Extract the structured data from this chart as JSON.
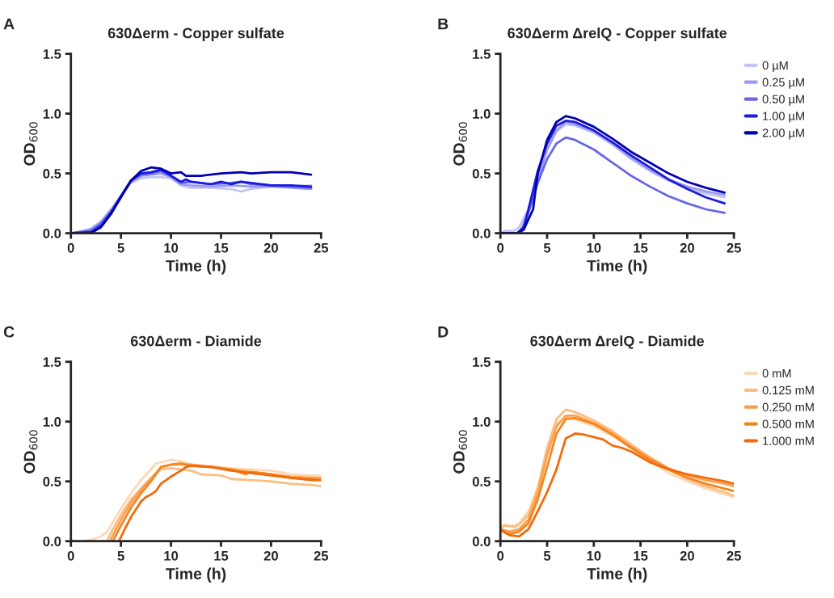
{
  "chart_data": [
    {
      "type": "line",
      "title": "630Δerm - Copper sulfate",
      "annotations": [
        "A"
      ],
      "xlabel": "Time (h)",
      "ylabel": "OD$_{600}$",
      "xlim": [
        0,
        25
      ],
      "xticks": [
        0,
        5,
        10,
        15,
        20,
        25
      ],
      "ylim": [
        0,
        1.5
      ],
      "yticks": [
        {
          "value": 0,
          "label": "0.0"
        },
        {
          "value": 0.5,
          "label": "0.5"
        },
        {
          "value": 1,
          "label": "1.0"
        },
        {
          "value": 1.5,
          "label": "1.5"
        }
      ],
      "grid": false,
      "legend": false,
      "series": [
        {
          "color": "#c3c3f5",
          "x": [
            0,
            1,
            2,
            3,
            4,
            5,
            6,
            7,
            8,
            9,
            10,
            11,
            12,
            14,
            16,
            17,
            18,
            20,
            22,
            24
          ],
          "values": [
            0,
            0.01,
            0.04,
            0.1,
            0.2,
            0.31,
            0.42,
            0.46,
            0.47,
            0.47,
            0.46,
            0.4,
            0.38,
            0.38,
            0.37,
            0.35,
            0.37,
            0.39,
            0.39,
            0.4
          ]
        },
        {
          "color": "#9a9af0",
          "x": [
            0,
            2,
            3,
            4,
            5,
            6,
            7,
            8,
            9,
            10,
            11,
            12,
            14,
            16,
            18,
            20,
            22,
            24
          ],
          "values": [
            0,
            0.03,
            0.09,
            0.19,
            0.31,
            0.43,
            0.48,
            0.49,
            0.5,
            0.47,
            0.41,
            0.4,
            0.39,
            0.4,
            0.39,
            0.39,
            0.38,
            0.37
          ]
        },
        {
          "color": "#6666e8",
          "x": [
            0,
            2,
            3,
            4,
            5,
            6,
            7,
            8,
            9,
            10,
            11,
            12,
            14,
            16,
            17,
            18,
            20,
            22,
            24
          ],
          "values": [
            0,
            0.02,
            0.08,
            0.18,
            0.31,
            0.44,
            0.49,
            0.5,
            0.52,
            0.48,
            0.42,
            0.43,
            0.41,
            0.42,
            0.43,
            0.41,
            0.4,
            0.39,
            0.38
          ]
        },
        {
          "color": "#1a1ae0",
          "x": [
            0,
            2,
            3,
            4,
            5,
            6,
            7,
            8,
            9,
            10,
            11,
            11.5,
            12,
            14,
            15,
            16,
            17,
            18,
            20,
            22,
            24
          ],
          "values": [
            0,
            0.01,
            0.06,
            0.17,
            0.31,
            0.44,
            0.5,
            0.51,
            0.53,
            0.48,
            0.43,
            0.45,
            0.43,
            0.41,
            0.43,
            0.41,
            0.43,
            0.42,
            0.4,
            0.4,
            0.39
          ]
        },
        {
          "color": "#0000b0",
          "x": [
            0,
            2,
            3,
            4,
            5,
            6,
            7,
            8,
            9,
            10,
            11,
            11.5,
            13,
            15,
            17,
            18,
            20,
            22,
            24
          ],
          "values": [
            0,
            0,
            0.05,
            0.16,
            0.3,
            0.44,
            0.52,
            0.55,
            0.54,
            0.5,
            0.51,
            0.48,
            0.48,
            0.5,
            0.51,
            0.5,
            0.51,
            0.51,
            0.49
          ]
        }
      ]
    },
    {
      "type": "line",
      "title": "630Δerm ΔrelQ - Copper sulfate",
      "annotations": [
        "B"
      ],
      "xlabel": "Time (h)",
      "ylabel": "OD$_{600}$",
      "xlim": [
        0,
        25
      ],
      "xticks": [
        0,
        5,
        10,
        15,
        20,
        25
      ],
      "ylim": [
        0,
        1.5
      ],
      "yticks": [
        {
          "value": 0,
          "label": "0.0"
        },
        {
          "value": 0.5,
          "label": "0.5"
        },
        {
          "value": 1,
          "label": "1.0"
        },
        {
          "value": 1.5,
          "label": "1.5"
        }
      ],
      "grid": false,
      "legend": "top right",
      "series": [
        {
          "name": "0 µM",
          "color": "#c3c3f5",
          "x": [
            0,
            0.5,
            1.5,
            2,
            3,
            4,
            5,
            6,
            7,
            8,
            10,
            12,
            14,
            16,
            18,
            20,
            22,
            24
          ],
          "values": [
            0,
            0.02,
            0.02,
            0.05,
            0.2,
            0.45,
            0.7,
            0.85,
            0.91,
            0.9,
            0.84,
            0.74,
            0.62,
            0.52,
            0.44,
            0.38,
            0.33,
            0.3
          ]
        },
        {
          "name": "0.25 µM",
          "color": "#9a9af0",
          "x": [
            0,
            1.8,
            2.2,
            3,
            4,
            5,
            6,
            7,
            8,
            10,
            12,
            14,
            16,
            18,
            20,
            22,
            24
          ],
          "values": [
            0,
            0,
            0.03,
            0.18,
            0.45,
            0.7,
            0.86,
            0.93,
            0.91,
            0.85,
            0.75,
            0.63,
            0.53,
            0.45,
            0.39,
            0.35,
            0.32
          ]
        },
        {
          "name": "0.50 µM",
          "color": "#6666e8",
          "x": [
            0,
            1.8,
            2.5,
            3,
            4,
            5,
            6,
            7,
            8,
            10,
            12,
            14,
            16,
            18,
            20,
            22,
            24
          ],
          "values": [
            0,
            0,
            0.05,
            0.17,
            0.42,
            0.62,
            0.75,
            0.8,
            0.78,
            0.7,
            0.59,
            0.48,
            0.39,
            0.31,
            0.25,
            0.2,
            0.17
          ]
        },
        {
          "name": "1.00 µM",
          "color": "#1a1ae0",
          "x": [
            0,
            1.8,
            2.5,
            3,
            4,
            5,
            6,
            7,
            8,
            10,
            12,
            14,
            16,
            18,
            20,
            22,
            24
          ],
          "values": [
            0,
            0,
            0.05,
            0.2,
            0.52,
            0.75,
            0.9,
            0.94,
            0.93,
            0.86,
            0.76,
            0.65,
            0.55,
            0.45,
            0.37,
            0.3,
            0.25
          ]
        },
        {
          "name": "2.00 µM",
          "color": "#0000b0",
          "x": [
            0,
            1.8,
            2.5,
            3.5,
            4,
            5,
            6,
            7,
            8,
            10,
            12,
            14,
            16,
            18,
            20,
            22,
            24
          ],
          "values": [
            0,
            0,
            0.03,
            0.2,
            0.5,
            0.78,
            0.93,
            0.98,
            0.96,
            0.89,
            0.79,
            0.68,
            0.59,
            0.5,
            0.43,
            0.38,
            0.34
          ]
        }
      ]
    },
    {
      "type": "line",
      "title": "630Δerm - Diamide",
      "annotations": [
        "C"
      ],
      "xlabel": "Time (h)",
      "ylabel": "OD$_{600}$",
      "xlim": [
        0,
        25
      ],
      "xticks": [
        0,
        5,
        10,
        15,
        20,
        25
      ],
      "ylim": [
        0,
        1.5
      ],
      "yticks": [
        {
          "value": 0,
          "label": "0.0"
        },
        {
          "value": 0.5,
          "label": "0.5"
        },
        {
          "value": 1,
          "label": "1.0"
        },
        {
          "value": 1.5,
          "label": "1.5"
        }
      ],
      "grid": false,
      "legend": false,
      "series": [
        {
          "color": "#fcd9b5",
          "x": [
            0,
            1,
            2,
            3,
            3.5,
            4,
            5,
            6,
            7,
            8,
            8.5,
            10,
            11,
            12,
            14,
            16,
            18,
            20,
            22,
            24,
            25
          ],
          "values": [
            0.01,
            0,
            0.01,
            0.04,
            0.07,
            0.13,
            0.27,
            0.4,
            0.51,
            0.6,
            0.65,
            0.68,
            0.67,
            0.64,
            0.63,
            0.61,
            0.6,
            0.59,
            0.56,
            0.55,
            0.55
          ]
        },
        {
          "color": "#fbbd80",
          "x": [
            3.6,
            4,
            5,
            6,
            7,
            8,
            9,
            10,
            11,
            12,
            13,
            15,
            16,
            18,
            20,
            22,
            24,
            25
          ],
          "values": [
            0,
            0.07,
            0.22,
            0.35,
            0.44,
            0.53,
            0.6,
            0.61,
            0.6,
            0.59,
            0.56,
            0.55,
            0.52,
            0.51,
            0.5,
            0.48,
            0.47,
            0.46
          ]
        },
        {
          "color": "#f9a050",
          "x": [
            3.9,
            5,
            6,
            7,
            8,
            9,
            10,
            12,
            14,
            16,
            18,
            20,
            22,
            24,
            25
          ],
          "values": [
            0,
            0.18,
            0.32,
            0.43,
            0.52,
            0.62,
            0.64,
            0.64,
            0.62,
            0.6,
            0.58,
            0.56,
            0.54,
            0.53,
            0.53
          ]
        },
        {
          "color": "#f5861f",
          "x": [
            4.2,
            5,
            6,
            7,
            8,
            9,
            10,
            11,
            12,
            14,
            16,
            17.5,
            18,
            20,
            22,
            24,
            25
          ],
          "values": [
            0,
            0.13,
            0.28,
            0.4,
            0.5,
            0.62,
            0.64,
            0.65,
            0.63,
            0.62,
            0.6,
            0.56,
            0.58,
            0.56,
            0.53,
            0.52,
            0.51
          ]
        },
        {
          "color": "#f26a0a",
          "x": [
            4.8,
            5.5,
            6,
            7,
            7.5,
            8,
            8.5,
            9,
            10,
            11,
            11.5,
            12,
            14,
            16,
            18,
            20,
            22,
            24,
            25
          ],
          "values": [
            0,
            0.12,
            0.2,
            0.33,
            0.37,
            0.39,
            0.42,
            0.48,
            0.54,
            0.59,
            0.62,
            0.63,
            0.62,
            0.59,
            0.57,
            0.55,
            0.53,
            0.51,
            0.51
          ]
        }
      ]
    },
    {
      "type": "line",
      "title": "630Δerm ΔrelQ - Diamide",
      "annotations": [
        "D"
      ],
      "xlabel": "Time (h)",
      "ylabel": "OD$_{600}$",
      "xlim": [
        0,
        25
      ],
      "xticks": [
        0,
        5,
        10,
        15,
        20,
        25
      ],
      "ylim": [
        0,
        1.5
      ],
      "yticks": [
        {
          "value": 0,
          "label": "0.0"
        },
        {
          "value": 0.5,
          "label": "0.5"
        },
        {
          "value": 1,
          "label": "1.0"
        },
        {
          "value": 1.5,
          "label": "1.5"
        }
      ],
      "grid": false,
      "legend": "top right",
      "series": [
        {
          "name": "0 mM",
          "color": "#fcd9b5",
          "x": [
            0,
            0.5,
            1,
            1.5,
            2,
            3,
            4,
            5,
            6,
            7,
            8,
            10,
            12,
            14,
            16,
            18,
            20,
            22,
            24,
            25
          ],
          "values": [
            0.12,
            0.14,
            0.13,
            0.13,
            0.15,
            0.25,
            0.45,
            0.75,
            0.98,
            1.04,
            1.02,
            0.96,
            0.88,
            0.78,
            0.67,
            0.57,
            0.5,
            0.44,
            0.39,
            0.37
          ]
        },
        {
          "name": "0.125 mM",
          "color": "#fbbd80",
          "x": [
            0,
            0.5,
            1.5,
            2,
            3,
            4,
            5,
            6,
            7,
            8,
            10,
            12,
            14,
            16,
            18,
            20,
            22,
            24,
            25
          ],
          "values": [
            0.11,
            0.13,
            0.12,
            0.14,
            0.22,
            0.44,
            0.78,
            1.02,
            1.1,
            1.08,
            1.01,
            0.92,
            0.81,
            0.7,
            0.6,
            0.52,
            0.46,
            0.41,
            0.38
          ]
        },
        {
          "name": "0.250 mM",
          "color": "#f9a050",
          "x": [
            0,
            1,
            2,
            3,
            4,
            5,
            6,
            7,
            8,
            10,
            12,
            14,
            16,
            18,
            20,
            22,
            24,
            25
          ],
          "values": [
            0.1,
            0.08,
            0.1,
            0.18,
            0.4,
            0.72,
            0.96,
            1.05,
            1.05,
            0.99,
            0.9,
            0.79,
            0.7,
            0.61,
            0.55,
            0.51,
            0.48,
            0.46
          ]
        },
        {
          "name": "0.500 mM",
          "color": "#f5861f",
          "x": [
            0,
            1,
            2,
            3,
            4,
            5,
            6,
            7,
            8,
            10,
            12,
            14,
            16,
            18,
            20,
            22,
            24,
            25
          ],
          "values": [
            0.09,
            0.06,
            0.08,
            0.15,
            0.35,
            0.62,
            0.9,
            1.02,
            1.03,
            0.98,
            0.89,
            0.78,
            0.68,
            0.6,
            0.53,
            0.48,
            0.44,
            0.42
          ]
        },
        {
          "name": "1.000 mM",
          "color": "#f26a0a",
          "x": [
            0,
            0.5,
            1,
            2,
            3,
            4,
            5,
            6,
            7,
            8,
            9,
            10,
            11,
            12,
            13,
            14,
            16,
            18,
            20,
            22,
            24,
            25
          ],
          "values": [
            0.1,
            0.07,
            0.05,
            0.04,
            0.1,
            0.25,
            0.41,
            0.6,
            0.86,
            0.9,
            0.89,
            0.87,
            0.85,
            0.8,
            0.78,
            0.75,
            0.66,
            0.6,
            0.56,
            0.53,
            0.5,
            0.48
          ]
        }
      ]
    }
  ]
}
